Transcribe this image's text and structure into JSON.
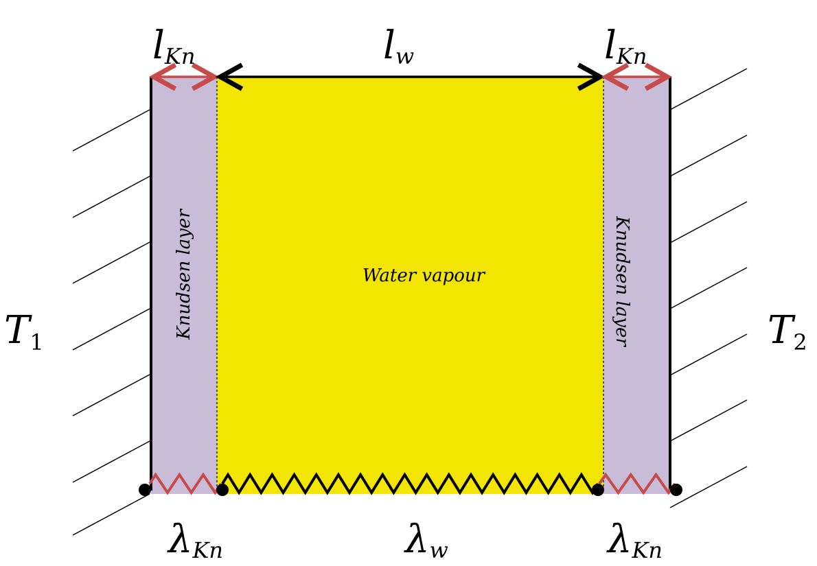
{
  "labels": {
    "l_left": {
      "main": "l",
      "sub": "Kn"
    },
    "l_mid": {
      "main": "l",
      "sub": "w"
    },
    "l_right": {
      "main": "l",
      "sub": "Kn"
    },
    "lambda_left": {
      "main": "λ",
      "sub": "Kn"
    },
    "lambda_mid": {
      "main": "λ",
      "sub": "w"
    },
    "lambda_right": {
      "main": "λ",
      "sub": "Kn"
    },
    "T1": {
      "main": "T",
      "sub": "1"
    },
    "T2": {
      "main": "T",
      "sub": "2"
    },
    "knudsen_left": "Knudsen layer",
    "knudsen_right": "Knudsen layer",
    "water": "Water vapour"
  },
  "colors": {
    "knudsen_fill": "#c8bcd8",
    "water_fill": "#f2e600",
    "red_arrow": "#c84b4b",
    "black": "#000000"
  }
}
